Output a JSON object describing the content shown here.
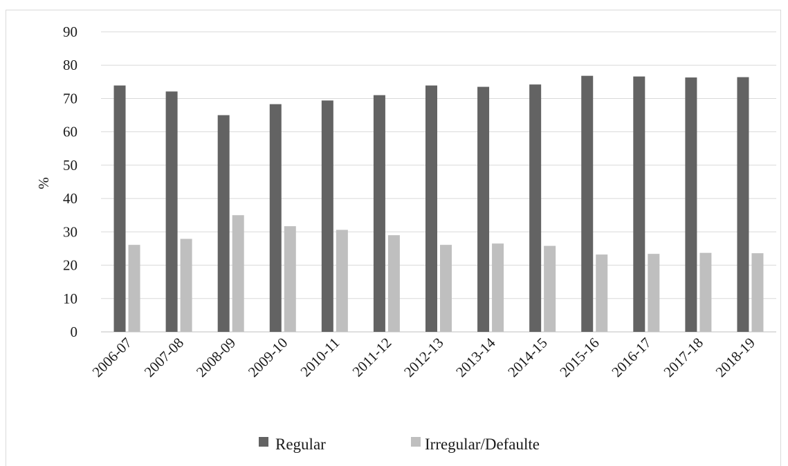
{
  "chart_data": {
    "type": "bar",
    "title": "",
    "xlabel": "",
    "ylabel": "%",
    "ylim": [
      0,
      90
    ],
    "yticks": [
      0,
      10,
      20,
      30,
      40,
      50,
      60,
      70,
      80,
      90
    ],
    "grid": true,
    "legend_position": "bottom",
    "categories": [
      "2006-07",
      "2007-08",
      "2008-09",
      "2009-10",
      "2010-11",
      "2011-12",
      "2012-13",
      "2013-14",
      "2014-15",
      "2015-16",
      "2016-17",
      "2017-18",
      "2018-19"
    ],
    "series": [
      {
        "name": "Regular",
        "color": "#636363",
        "values": [
          73.9,
          72.1,
          65.0,
          68.3,
          69.4,
          71.0,
          73.9,
          73.5,
          74.2,
          76.8,
          76.6,
          76.3,
          76.4
        ]
      },
      {
        "name": "Irregular/Defaulte",
        "color": "#bfbfbf",
        "values": [
          26.1,
          27.9,
          35.0,
          31.7,
          30.6,
          29.0,
          26.1,
          26.5,
          25.8,
          23.2,
          23.4,
          23.7,
          23.6
        ]
      }
    ]
  }
}
